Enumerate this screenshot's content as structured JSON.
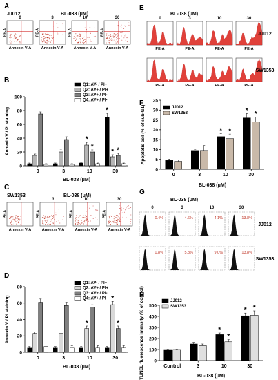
{
  "panels": {
    "A": {
      "letter": "A",
      "cell_line": "JJ012",
      "drug": "BL-038 (μM)",
      "doses": [
        "0",
        "3",
        "10",
        "30"
      ],
      "y_label": "PE-A",
      "x_label": "Annexin V-A"
    },
    "C": {
      "letter": "C",
      "cell_line": "SW1353",
      "drug": "BL-038 (μM)",
      "doses": [
        "0",
        "3",
        "10",
        "30"
      ],
      "y_label": "PE-A",
      "x_label": "Annexin V-A"
    },
    "E": {
      "letter": "E",
      "drug": "BL-038 (μM)",
      "doses": [
        "0",
        "3",
        "10",
        "30"
      ],
      "rows": [
        "JJ012",
        "SW1353"
      ],
      "x_label": "PE-A"
    },
    "G": {
      "letter": "G",
      "drug": "BL-038 (μM)",
      "doses": [
        "0",
        "3",
        "10",
        "30"
      ],
      "rows": [
        {
          "name": "JJ012",
          "pct": [
            "0.4%",
            "4.6%",
            "4.1%",
            "13.8%"
          ]
        },
        {
          "name": "SW1353",
          "pct": [
            "0.8%",
            "5.8%",
            "9.0%",
            "13.8%"
          ]
        }
      ]
    }
  },
  "chart_data": [
    {
      "id": "B",
      "letter": "B",
      "type": "bar",
      "categories": [
        "0",
        "3",
        "10",
        "30"
      ],
      "xlabel": "BL-038 (μM)",
      "ylabel": "Annexin V / PI staining",
      "ylim": [
        0,
        100
      ],
      "yticks": [
        "0",
        "20",
        "40",
        "60",
        "80",
        "100"
      ],
      "legend_position": "top-right",
      "series": [
        {
          "name": "Q1: AV- / PI+",
          "color": "#000000",
          "values": [
            3,
            3,
            4,
            70
          ],
          "errors": [
            1,
            1,
            1,
            6
          ]
        },
        {
          "name": "Q2: AV+ / PI+",
          "color": "#b5b5b5",
          "values": [
            15,
            20,
            30,
            13
          ],
          "errors": [
            2,
            4,
            4,
            3
          ]
        },
        {
          "name": "Q3: AV+ / PI-",
          "color": "#808080",
          "values": [
            75,
            38,
            20,
            15
          ],
          "errors": [
            3,
            4,
            3,
            3
          ]
        },
        {
          "name": "Q4: AV+ / PI-",
          "color": "#ffffff",
          "values": [
            2,
            2,
            3,
            3
          ],
          "errors": [
            1,
            1,
            1,
            1
          ]
        }
      ],
      "significant": [
        [
          0,
          3
        ],
        [
          1,
          2
        ],
        [
          2,
          2
        ],
        [
          1,
          3
        ],
        [
          2,
          3
        ]
      ]
    },
    {
      "id": "D",
      "letter": "D",
      "type": "bar",
      "categories": [
        "0",
        "3",
        "10",
        "30"
      ],
      "xlabel": "BL-038 (μM)",
      "ylabel": "Annexin V / PI staining",
      "ylim": [
        0,
        80
      ],
      "yticks": [
        "0",
        "20",
        "40",
        "60",
        "80"
      ],
      "legend_position": "top-right",
      "series": [
        {
          "name": "Q1: AV- / PI+",
          "color": "#000000",
          "values": [
            6,
            6,
            6,
            6
          ],
          "errors": [
            1,
            1,
            1,
            1
          ]
        },
        {
          "name": "Q2: AV+ / PI+",
          "color": "#d9d9d9",
          "values": [
            23,
            23,
            29,
            58
          ],
          "errors": [
            2,
            2,
            3,
            4
          ]
        },
        {
          "name": "Q3: AV+ / PI-",
          "color": "#808080",
          "values": [
            61,
            57,
            55,
            29
          ],
          "errors": [
            4,
            4,
            3,
            3
          ]
        },
        {
          "name": "Q4: AV+ / PI-",
          "color": "#ffffff",
          "values": [
            7,
            6,
            6,
            6
          ],
          "errors": [
            2,
            2,
            2,
            2
          ]
        }
      ],
      "significant": [
        [
          1,
          2
        ],
        [
          1,
          3
        ],
        [
          2,
          3
        ]
      ]
    },
    {
      "id": "F",
      "letter": "F",
      "type": "bar",
      "categories": [
        "0",
        "3",
        "10",
        "30"
      ],
      "xlabel": "BL-038 (μM)",
      "ylabel": "Apoptotic cell (% of sub G1)",
      "ylim": [
        0,
        35
      ],
      "yticks": [
        "0",
        "5",
        "10",
        "15",
        "20",
        "25",
        "30",
        "35"
      ],
      "legend_position": "top-left",
      "series": [
        {
          "name": "JJ012",
          "color": "#000000",
          "values": [
            4.5,
            9.5,
            16.5,
            26
          ],
          "errors": [
            0.6,
            0.6,
            1.5,
            2.2
          ]
        },
        {
          "name": "SW1353",
          "color": "#c9b9a9",
          "values": [
            4,
            9.5,
            15.5,
            24
          ],
          "errors": [
            0.8,
            2.5,
            2.3,
            2.5
          ]
        }
      ],
      "significant": [
        [
          0,
          2
        ],
        [
          1,
          2
        ],
        [
          0,
          3
        ],
        [
          1,
          3
        ]
      ]
    },
    {
      "id": "H",
      "letter": "H",
      "type": "bar",
      "categories": [
        "Control",
        "3",
        "10",
        "30"
      ],
      "xlabel": "BL-038 (μM)",
      "ylabel": "TUNEL fluorescence intensity (% of control)",
      "ylim": [
        0,
        500
      ],
      "yticks": [
        "0",
        "100",
        "200",
        "300",
        "400",
        "500"
      ],
      "legend_position": "top-left",
      "series": [
        {
          "name": "JJ012",
          "color": "#000000",
          "values": [
            100,
            150,
            235,
            405
          ],
          "errors": [
            3,
            15,
            15,
            25
          ]
        },
        {
          "name": "SW1353",
          "color": "#c9c9c9",
          "values": [
            100,
            135,
            170,
            410
          ],
          "errors": [
            3,
            15,
            20,
            40
          ]
        }
      ],
      "significant": [
        [
          0,
          2
        ],
        [
          1,
          2
        ],
        [
          0,
          3
        ],
        [
          1,
          3
        ]
      ]
    }
  ]
}
